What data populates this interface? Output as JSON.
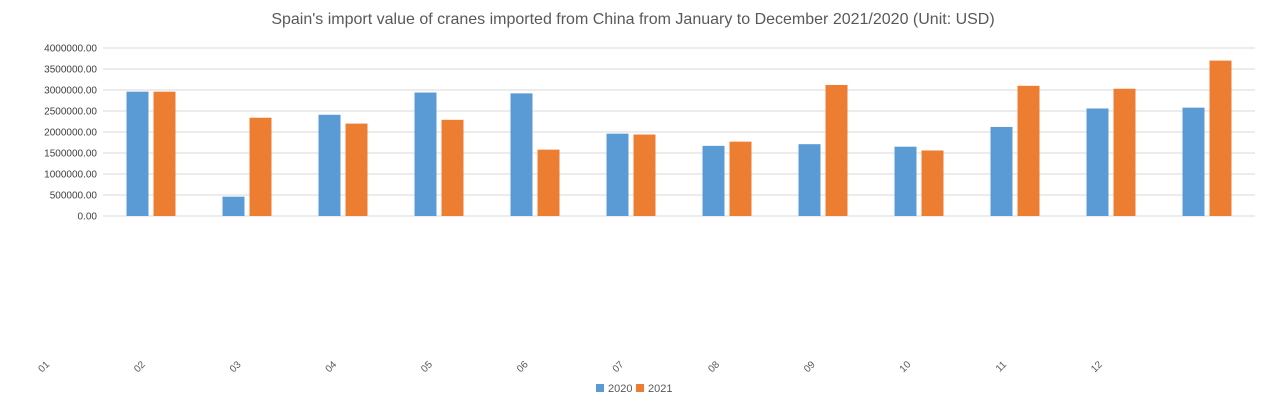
{
  "chart_data": {
    "type": "bar",
    "title": "Spain's import value of cranes imported from China from January to December 2021/2020 (Unit: USD)",
    "xlabel": "",
    "ylabel": "",
    "categories": [
      "01",
      "02",
      "03",
      "04",
      "05",
      "06",
      "07",
      "08",
      "09",
      "10",
      "11",
      "12"
    ],
    "bar_groups": 12,
    "series": [
      {
        "name": "2020",
        "color": "#5b9bd5",
        "values": [
          2960000,
          460000,
          2410000,
          2940000,
          2920000,
          1960000,
          1670000,
          1710000,
          1650000,
          2120000,
          2560000,
          2580000
        ]
      },
      {
        "name": "2021",
        "color": "#ed7d31",
        "values": [
          2960000,
          2340000,
          2200000,
          2290000,
          1580000,
          1940000,
          1770000,
          3120000,
          1560000,
          3100000,
          3030000,
          3700000
        ]
      }
    ],
    "ylim": [
      0,
      4000000
    ],
    "yticks": [
      "0.00",
      "500000.00",
      "1000000.00",
      "1500000.00",
      "2000000.00",
      "2500000.00",
      "3000000.00",
      "3500000.00",
      "4000000.00"
    ],
    "grid": true,
    "legend_position": "bottom"
  }
}
